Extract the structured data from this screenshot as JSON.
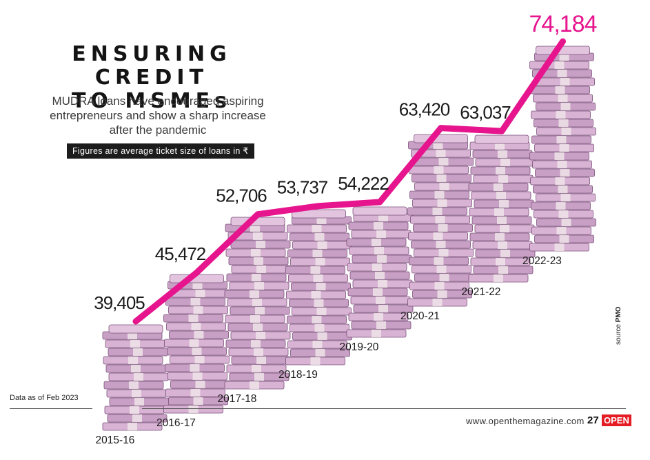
{
  "header": {
    "title_line1": "ENSURING CREDIT",
    "title_line2": "TO MSMEs",
    "subtitle": "MUDRA loans have encouraged aspiring entrepreneurs and show a sharp increase after the pandemic",
    "note": "Figures are average ticket size of loans in ₹"
  },
  "chart_data": {
    "type": "line",
    "categories": [
      "2015-16",
      "2016-17",
      "2017-18",
      "2018-19",
      "2019-20",
      "2020-21",
      "2021-22",
      "2022-23"
    ],
    "values": [
      39405,
      45472,
      52706,
      53737,
      54222,
      63420,
      63037,
      74184
    ],
    "value_labels": [
      "39,405",
      "45,472",
      "52,706",
      "53,737",
      "54,222",
      "63,420",
      "63,037",
      "74,184"
    ],
    "highlight_index": 7,
    "line_color": "#e6158e",
    "highlight_color": "#e6158e",
    "stack_color": "#c9a0c5",
    "stack_edge_color": "#7a4f7a",
    "grid": false,
    "legend": "none"
  },
  "footer": {
    "data_note": "Data as of Feb 2023",
    "website": "www.openthemagazine.com",
    "page_number": "27",
    "brand": "OPEN",
    "source_label": "source",
    "source_name": "PMO"
  }
}
